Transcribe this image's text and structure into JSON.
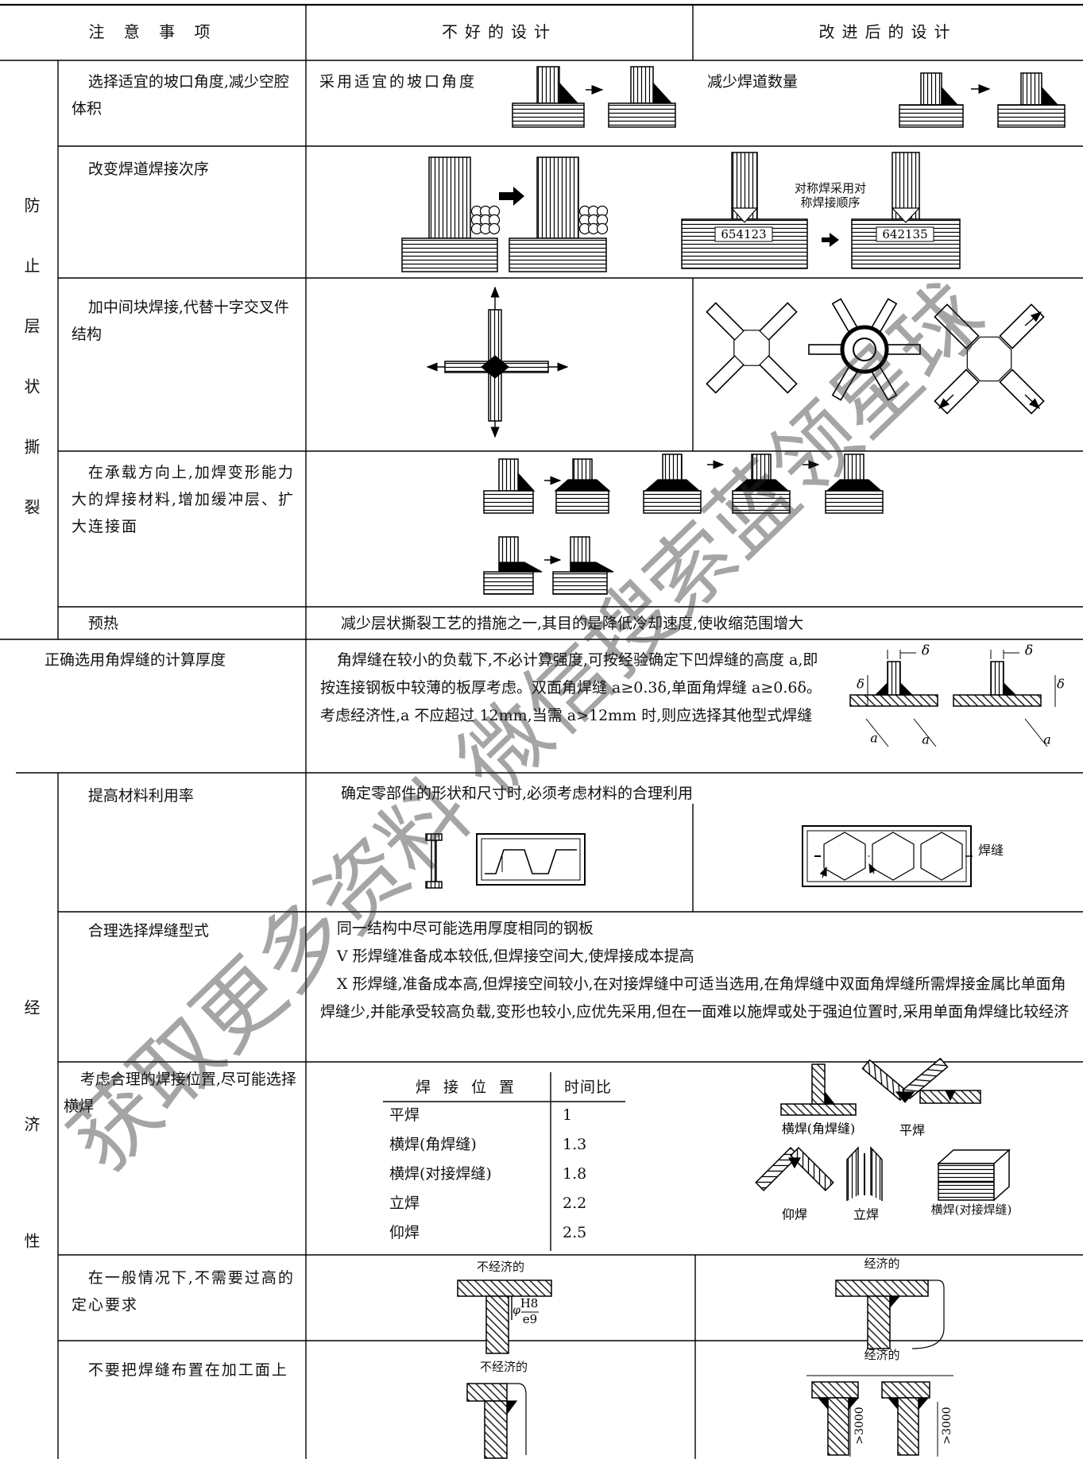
{
  "header": {
    "note": "注 意 事 项",
    "bad": "不好的设计",
    "good": "改进后的设计"
  },
  "groups": [
    {
      "category": "防止层状撕裂"
    },
    {
      "category": "经济性"
    }
  ],
  "rows": [
    {
      "note": "选择适宜的坡口角度,减少空腔体积",
      "bad": "采用适宜的坡口角度",
      "good": "减少焊道数量"
    },
    {
      "note": "改变焊道焊接次序",
      "bad_sequence": "654123",
      "good_sequence": "642135",
      "good_caption": "对称焊采用对称焊接顺序"
    },
    {
      "note": "加中间块焊接,代替十字交叉件结构"
    },
    {
      "note": "在承载方向上,加焊变形能力大的焊接材料,增加缓冲层、扩大连接面"
    },
    {
      "note": "预热",
      "text": "减少层状撕裂工艺的措施之一,其目的是降低冷却速度,使收缩范围增大"
    },
    {
      "note": "正确选用角焊缝的计算厚度",
      "text": "角焊缝在较小的负载下,不必计算强度,可按经验确定下凹焊缝的高度 a,即按连接钢板中较薄的板厚考虑。双面角焊缝 a≥0.3δ,单面角焊缝 a≥0.6δ。考虑经济性,a 不应超过 12mm,当需 a>12mm 时,则应选择其他型式焊缝",
      "delta": "δ",
      "throat": "a"
    },
    {
      "note": "提高材料利用率",
      "text": "确定零部件的形状和尺寸时,必须考虑材料的合理利用",
      "weld_label": "焊缝"
    },
    {
      "note": "合理选择焊缝型式",
      "paragraphs": [
        "同一结构中尽可能选用厚度相同的钢板",
        "V 形焊缝准备成本较低,但焊接空间大,使焊接成本提高",
        "X 形焊缝,准备成本高,但焊接空间较小,在对接焊缝中可适当选用,在角焊缝中双面角焊缝所需焊接金属比单面角焊缝少,并能承受较高负载,变形也较小,应优先采用,但在一面难以施焊或处于强迫位置时,采用单面角焊缝比较经济"
      ]
    },
    {
      "note": "考虑合理的焊接位置,尽可能选择横焊",
      "table": {
        "header": [
          "焊 接 位 置",
          "时间比"
        ],
        "rows": [
          [
            "平焊",
            "1"
          ],
          [
            "横焊(角焊缝)",
            "1.3"
          ],
          [
            "横焊(对接焊缝)",
            "1.8"
          ],
          [
            "立焊",
            "2.2"
          ],
          [
            "仰焊",
            "2.5"
          ]
        ]
      },
      "figure_labels": [
        "横焊(角焊缝)",
        "平焊",
        "仰焊",
        "立焊",
        "横焊(对接焊缝)"
      ]
    },
    {
      "note": "在一般情况下,不需要过高的定心要求",
      "bad": "不经济的",
      "good": "经济的",
      "fit_symbol": "φ",
      "fit_hole": "H8",
      "fit_shaft": "e9"
    },
    {
      "note": "不要把焊缝布置在加工面上",
      "bad": "不经济的",
      "good": "经济的",
      "dimension": ">3000"
    }
  ],
  "watermark": "获取更多资料 微信搜索蓝领星球"
}
